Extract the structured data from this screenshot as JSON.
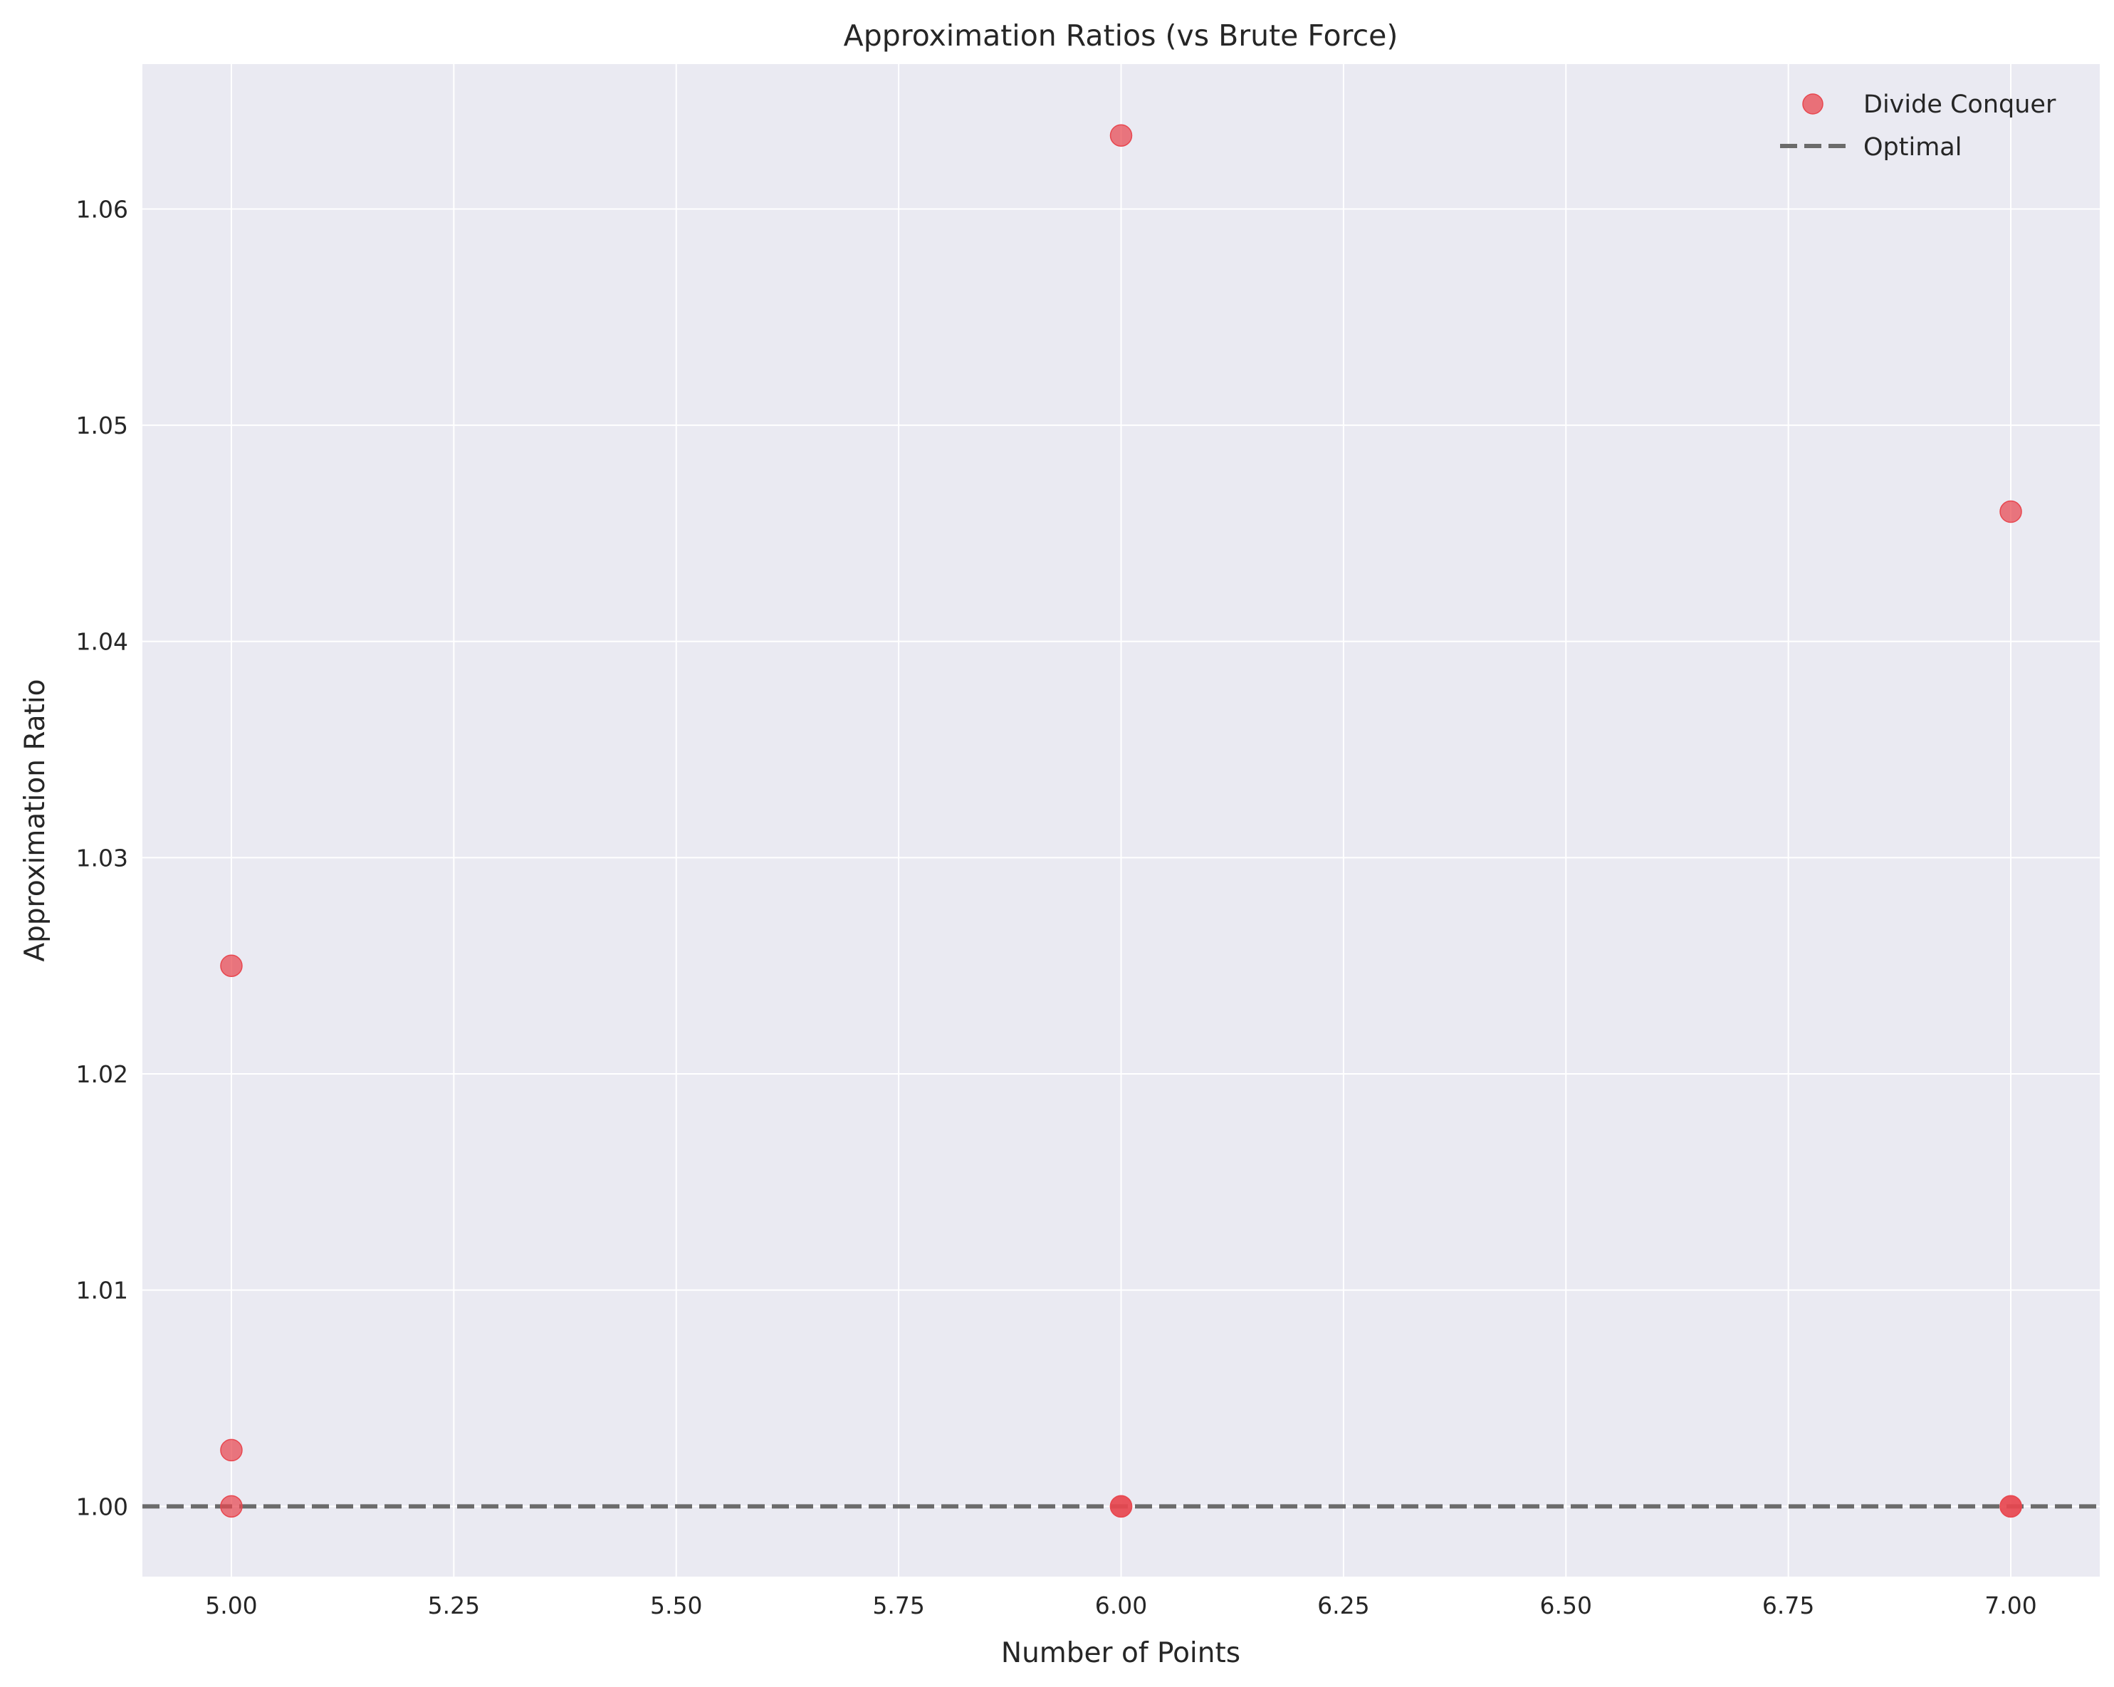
{
  "chart_data": {
    "type": "scatter",
    "title": "Approximation Ratios (vs Brute Force)",
    "xlabel": "Number of Points",
    "ylabel": "Approximation Ratio",
    "xlim": [
      4.9,
      7.1
    ],
    "ylim": [
      0.99675,
      1.0667
    ],
    "x_ticks": [
      5.0,
      5.25,
      5.5,
      5.75,
      6.0,
      6.25,
      6.5,
      6.75,
      7.0
    ],
    "x_tick_labels": [
      "5.00",
      "5.25",
      "5.50",
      "5.75",
      "6.00",
      "6.25",
      "6.50",
      "6.75",
      "7.00"
    ],
    "y_ticks": [
      1.0,
      1.01,
      1.02,
      1.03,
      1.04,
      1.05,
      1.06
    ],
    "y_tick_labels": [
      "1.00",
      "1.01",
      "1.02",
      "1.03",
      "1.04",
      "1.05",
      "1.06"
    ],
    "grid": true,
    "legend_position": "top-right",
    "series": [
      {
        "name": "Divide Conquer",
        "kind": "scatter",
        "color": "#e8474f",
        "x": [
          5,
          5,
          5,
          6,
          6,
          6,
          7,
          7,
          7
        ],
        "y": [
          1.025,
          1.0026,
          1.0,
          1.0634,
          1.0,
          1.0,
          1.046,
          1.0,
          1.0
        ]
      },
      {
        "name": "Optimal",
        "kind": "hline",
        "color": "#6b6b6b",
        "y": 1.0,
        "style": "dashed"
      }
    ],
    "colors": {
      "background": "#eaeaf2",
      "grid": "#ffffff"
    }
  }
}
